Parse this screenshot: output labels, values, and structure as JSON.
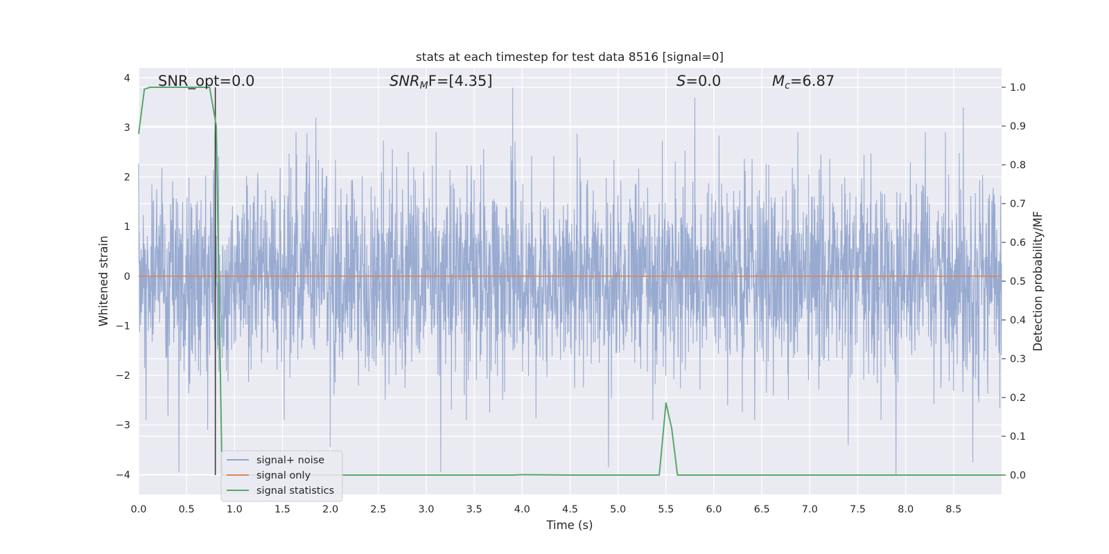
{
  "chart_data": {
    "type": "line",
    "title": "stats at each timestep for test data 8516 [signal=0]",
    "xlabel": "Time (s)",
    "ylabel": "Whitened strain",
    "ylabel_right": "Detection probability/MF",
    "xlim": [
      0.0,
      9.0
    ],
    "ylim": [
      -4.4,
      4.2
    ],
    "ylim_right": [
      -0.05,
      1.05
    ],
    "x_ticks": [
      "0.0",
      "0.5",
      "1.0",
      "1.5",
      "2.0",
      "2.5",
      "3.0",
      "3.5",
      "4.0",
      "4.5",
      "5.0",
      "5.5",
      "6.0",
      "6.5",
      "7.0",
      "7.5",
      "8.0",
      "8.5"
    ],
    "y_ticks": [
      "4",
      "3",
      "2",
      "1",
      "0",
      "−1",
      "−2",
      "−3",
      "−4"
    ],
    "y_ticks_right": [
      "1.0",
      "0.9",
      "0.8",
      "0.7",
      "0.6",
      "0.5",
      "0.4",
      "0.3",
      "0.2",
      "0.1",
      "0.0"
    ],
    "grid": true,
    "legend_position": "lower-left",
    "annotations": {
      "snr_opt": "SNR_opt=0.0",
      "snr_mf_prefix": "SNR",
      "snr_mf_sub": "M",
      "snr_mf_suffix": "F=[4.35]",
      "s_prefix": "S",
      "s_suffix": "=0.0",
      "mc_prefix": "M",
      "mc_sub": "c",
      "mc_suffix": "=6.87"
    },
    "marker_line_x": 0.8,
    "series": [
      {
        "name": "signal+ noise",
        "color": "#8fa3cc",
        "envelope": {
          "typical_amplitude": 1.6,
          "spikes": [
            {
              "x": 0.42,
              "y": -3.95
            },
            {
              "x": 0.72,
              "y": -3.1
            },
            {
              "x": 1.85,
              "y": 3.2
            },
            {
              "x": 2.0,
              "y": -3.45
            },
            {
              "x": 3.15,
              "y": -3.95
            },
            {
              "x": 3.9,
              "y": 3.8
            },
            {
              "x": 4.9,
              "y": -3.85
            },
            {
              "x": 5.8,
              "y": 3.6
            },
            {
              "x": 7.4,
              "y": -3.4
            },
            {
              "x": 7.9,
              "y": -4.0
            },
            {
              "x": 8.7,
              "y": -3.75
            },
            {
              "x": 8.6,
              "y": 3.4
            }
          ]
        }
      },
      {
        "name": "signal only",
        "color": "#dd8452",
        "x": [
          0.0,
          9.0
        ],
        "y": [
          0.0,
          0.0
        ]
      },
      {
        "name": "signal statistics",
        "color": "#55a868",
        "axis": "right",
        "x": [
          0.0,
          0.06,
          0.12,
          0.2,
          0.4,
          0.6,
          0.74,
          0.81,
          0.87,
          1.0,
          1.5,
          2.0,
          2.5,
          3.0,
          3.5,
          3.9,
          4.0,
          4.5,
          5.0,
          5.43,
          5.5,
          5.56,
          5.62,
          5.7,
          6.0,
          6.5,
          7.0,
          7.5,
          8.0,
          8.5,
          8.6,
          9.0
        ],
        "y": [
          0.88,
          0.995,
          1.0,
          1.0,
          1.0,
          1.0,
          1.0,
          0.9,
          0.0,
          0.0,
          0.0,
          0.0,
          0.0,
          0.0,
          0.0,
          0.0,
          0.001,
          0.0,
          0.0,
          0.0,
          0.186,
          0.12,
          0.0,
          0.0,
          0.0,
          0.0,
          0.0,
          0.0,
          0.0,
          0.0,
          0.0,
          0.0
        ]
      }
    ]
  }
}
